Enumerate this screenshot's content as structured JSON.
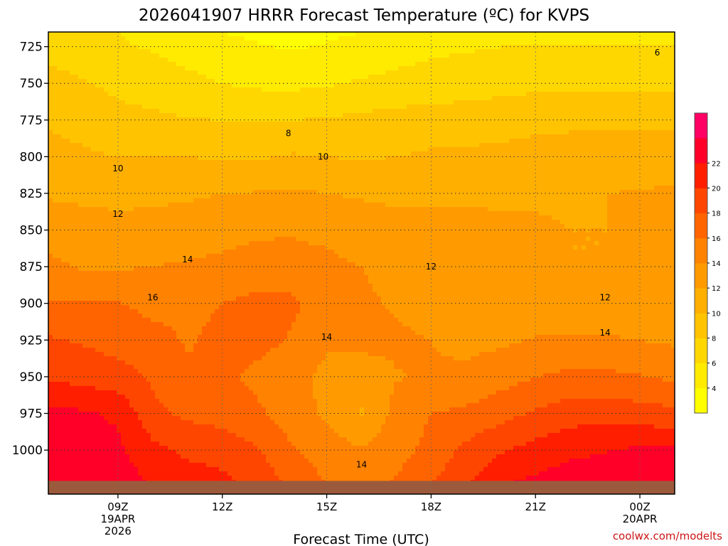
{
  "chart_data": {
    "type": "heatmap",
    "title": "2026041907 HRRR Forecast Temperature (ºC) for KVPS",
    "xlabel": "Forecast Time (UTC)",
    "ylabel": "",
    "credit": "coolwx.com/modelts",
    "y_axis": {
      "scale": "linear",
      "inverted": true,
      "range": [
        1030,
        715
      ],
      "ticks": [
        725,
        750,
        775,
        800,
        825,
        850,
        875,
        900,
        925,
        950,
        975,
        1000
      ]
    },
    "x_axis": {
      "range_hours": [
        7,
        25
      ],
      "ticks": [
        {
          "hour": 9,
          "lines": [
            "09Z",
            "19APR",
            "2026"
          ]
        },
        {
          "hour": 12,
          "lines": [
            "12Z"
          ]
        },
        {
          "hour": 15,
          "lines": [
            "15Z"
          ]
        },
        {
          "hour": 18,
          "lines": [
            "18Z"
          ]
        },
        {
          "hour": 21,
          "lines": [
            "21Z"
          ]
        },
        {
          "hour": 24,
          "lines": [
            "00Z",
            "20APR"
          ]
        }
      ]
    },
    "grid": true,
    "ground_level_hpa": 1021,
    "colorbar": {
      "placement": "right",
      "levels": [
        2,
        4,
        6,
        8,
        10,
        12,
        14,
        16,
        18,
        20,
        22,
        24
      ],
      "tick_labels": [
        "4",
        "6",
        "8",
        "10",
        "12",
        "14",
        "16",
        "18",
        "20",
        "22"
      ],
      "colors": [
        "#ffff00",
        "#ffeb00",
        "#ffd700",
        "#ffc300",
        "#ffaf00",
        "#ff9b00",
        "#ff8200",
        "#ff6400",
        "#ff4600",
        "#ff1e00",
        "#ff0028",
        "#ff0064"
      ]
    },
    "contour_labels": [
      {
        "value": "6",
        "hour": 24.5,
        "p": 729
      },
      {
        "value": "8",
        "hour": 13.9,
        "p": 784
      },
      {
        "value": "10",
        "hour": 9,
        "p": 808
      },
      {
        "value": "10",
        "hour": 14.9,
        "p": 800
      },
      {
        "value": "12",
        "hour": 9,
        "p": 839
      },
      {
        "value": "12",
        "hour": 18,
        "p": 875
      },
      {
        "value": "12",
        "hour": 23,
        "p": 896
      },
      {
        "value": "14",
        "hour": 11,
        "p": 870
      },
      {
        "value": "14",
        "hour": 15,
        "p": 923
      },
      {
        "value": "14",
        "hour": 16,
        "p": 1010
      },
      {
        "value": "14",
        "hour": 23,
        "p": 920
      },
      {
        "value": "16",
        "hour": 10,
        "p": 896
      }
    ],
    "columns_hour": [
      7,
      8,
      9,
      10,
      11,
      12,
      13,
      14,
      15,
      16,
      17,
      18,
      19,
      20,
      21,
      22,
      23,
      24,
      25
    ],
    "rows_hpa": [
      715,
      725,
      750,
      775,
      800,
      825,
      850,
      875,
      900,
      925,
      950,
      975,
      1000,
      1030
    ],
    "temperature_grid_c": [
      [
        6,
        6,
        6,
        5,
        4.5,
        4,
        3.5,
        3,
        3.5,
        4,
        4.5,
        5,
        5,
        5.5,
        5.5,
        5.5,
        5.5,
        5.5,
        5.5
      ],
      [
        7,
        6.5,
        6.3,
        5.8,
        5.2,
        4.7,
        4.2,
        3.8,
        4.2,
        4.7,
        5.2,
        5.6,
        5.8,
        6,
        6.1,
        6.1,
        6.1,
        6,
        6
      ],
      [
        9,
        8.2,
        7.5,
        7,
        6.5,
        6,
        5.6,
        5.5,
        5.8,
        6.2,
        6.5,
        6.8,
        7,
        7.3,
        7.5,
        7.5,
        7.5,
        7.4,
        7.4
      ],
      [
        9.8,
        9.3,
        8.6,
        8.4,
        8.1,
        8,
        8,
        8,
        8.1,
        8.5,
        8.7,
        9,
        9,
        9.2,
        9.4,
        9.5,
        9.6,
        9.6,
        9.6
      ],
      [
        10.5,
        10.3,
        10,
        10,
        10,
        9.8,
        9.8,
        10.2,
        10,
        9.8,
        10,
        10.3,
        10.4,
        10.5,
        10.8,
        11,
        11,
        11,
        11
      ],
      [
        11.8,
        11.6,
        11.4,
        11.5,
        11.7,
        12,
        12.1,
        12.3,
        12,
        11.8,
        11.7,
        11.8,
        11.9,
        11.9,
        11.9,
        11.9,
        12,
        12.1,
        12.3
      ],
      [
        13,
        12.8,
        12.7,
        12.8,
        13,
        13.3,
        13.7,
        13.8,
        13.5,
        12.9,
        12.5,
        12.3,
        12.2,
        12.1,
        12.1,
        12,
        12,
        12.1,
        12
      ],
      [
        14.5,
        13.8,
        13.8,
        14,
        14.2,
        14.5,
        14.8,
        14.8,
        14.5,
        14,
        13.4,
        12.9,
        13,
        12.3,
        12.1,
        12,
        12,
        12,
        12
      ],
      [
        16.2,
        16.3,
        16.1,
        15.4,
        15.5,
        16,
        16.5,
        16.4,
        15,
        14.3,
        13.8,
        13.3,
        12.5,
        12.3,
        12.2,
        12,
        12.1,
        12.1,
        12.1
      ],
      [
        18.2,
        17.8,
        17.2,
        16.7,
        15.8,
        16.5,
        16.7,
        15.8,
        14.2,
        14.5,
        14.3,
        14,
        13.5,
        13.6,
        14.2,
        14.4,
        14.3,
        14,
        13.7
      ],
      [
        19.8,
        19.2,
        18.8,
        17.7,
        16.3,
        16.5,
        15.5,
        14.5,
        13.6,
        13.1,
        13.9,
        14.2,
        14.4,
        15.2,
        15.9,
        16.5,
        16.4,
        16.1,
        15.6
      ],
      [
        22.5,
        22.3,
        21.7,
        18.5,
        17.6,
        17.2,
        16.4,
        14.8,
        13.7,
        11.8,
        14.6,
        16,
        16.4,
        17.3,
        18.3,
        19.1,
        19.2,
        18.9,
        18.5
      ],
      [
        22.9,
        22.8,
        22.4,
        20.6,
        19.6,
        19.2,
        18.2,
        16.3,
        14.9,
        14.2,
        15.2,
        16.6,
        18.5,
        19.8,
        20.7,
        21.5,
        21.9,
        22.3,
        22.3
      ],
      [
        23.5,
        23.3,
        23.1,
        22.3,
        21.4,
        20.9,
        19.7,
        17.9,
        16.3,
        15.4,
        16.6,
        18.4,
        20.1,
        22.4,
        23.1,
        23.6,
        23.8,
        23.5,
        23.4
      ]
    ]
  }
}
